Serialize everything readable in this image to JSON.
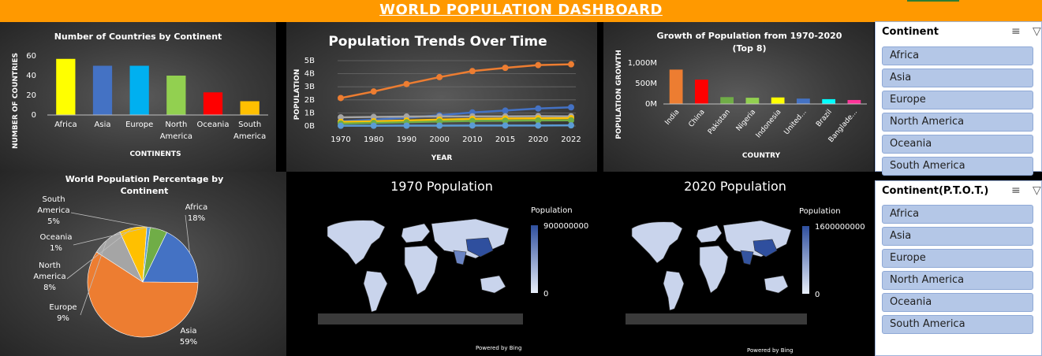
{
  "dashboard": {
    "title": "WORLD POPULATION DASHBOARD"
  },
  "colors": {
    "banner": "#ff9900",
    "slicer_item": "#b4c7e7",
    "map_fill_low": "#c9d4ec",
    "map_fill_high": "#2f4f9e"
  },
  "chart_data": [
    {
      "type": "bar",
      "title": "Number of Countries by Continent",
      "xlabel": "CONTINENTS",
      "ylabel": "NUMBER OF COUNTRIES",
      "categories": [
        "Africa",
        "Asia",
        "Europe",
        "North America",
        "Oceania",
        "South America"
      ],
      "category_lines": [
        [
          "Africa"
        ],
        [
          "Asia"
        ],
        [
          "Europe"
        ],
        [
          "North",
          "America"
        ],
        [
          "Oceania"
        ],
        [
          "South",
          "America"
        ]
      ],
      "values": [
        57,
        50,
        50,
        40,
        23,
        14
      ],
      "colors": [
        "#ffff00",
        "#4472c4",
        "#00b0f0",
        "#92d050",
        "#ff0000",
        "#ffc000"
      ],
      "yticks": [
        0,
        20,
        40,
        60
      ],
      "ylim": [
        0,
        60
      ],
      "grid": false
    },
    {
      "type": "line",
      "title": "Population Trends Over Time",
      "xlabel": "YEAR",
      "ylabel": "POPULATION",
      "x": [
        "1970",
        "1980",
        "1990",
        "2000",
        "2010",
        "2015",
        "2020",
        "2022"
      ],
      "ytick_labels": [
        "0B",
        "1B",
        "2B",
        "3B",
        "4B",
        "5B"
      ],
      "ylim": [
        0,
        5
      ],
      "series": [
        {
          "color": "#ed7d31",
          "values": [
            2.14,
            2.64,
            3.21,
            3.74,
            4.2,
            4.45,
            4.66,
            4.72
          ]
        },
        {
          "color": "#4472c4",
          "values": [
            0.37,
            0.48,
            0.63,
            0.82,
            1.04,
            1.18,
            1.34,
            1.43
          ]
        },
        {
          "color": "#a5a5a5",
          "values": [
            0.66,
            0.69,
            0.72,
            0.73,
            0.74,
            0.74,
            0.75,
            0.74
          ]
        },
        {
          "color": "#ffc000",
          "values": [
            0.32,
            0.36,
            0.42,
            0.49,
            0.54,
            0.57,
            0.59,
            0.6
          ]
        },
        {
          "color": "#70ad47",
          "values": [
            0.19,
            0.24,
            0.29,
            0.35,
            0.39,
            0.41,
            0.43,
            0.44
          ]
        },
        {
          "color": "#5b9bd5",
          "values": [
            0.02,
            0.02,
            0.03,
            0.03,
            0.04,
            0.04,
            0.04,
            0.05
          ]
        }
      ],
      "grid": true
    },
    {
      "type": "bar",
      "title": "Growth of Population from 1970-2020",
      "subtitle": "(Top 8)",
      "xlabel": "COUNTRY",
      "ylabel": "POPULATION GROWTH",
      "categories": [
        "India",
        "China",
        "Pakistan",
        "Nigeria",
        "Indonesia",
        "United...",
        "Brazil",
        "Banglade..."
      ],
      "values_millions": [
        839,
        593,
        167,
        152,
        159,
        131,
        117,
        97
      ],
      "colors": [
        "#ed7d31",
        "#ff0000",
        "#70ad47",
        "#92d050",
        "#ffff00",
        "#4472c4",
        "#00ffff",
        "#ff3399"
      ],
      "ytick_labels": [
        "0M",
        "500M",
        "1,000M"
      ],
      "ylim": [
        0,
        1000
      ],
      "grid": false
    },
    {
      "type": "pie",
      "title": "World Population Percentage by Continent",
      "slices": [
        {
          "label": "Africa",
          "pct": 18,
          "color": "#4472c4"
        },
        {
          "label": "Asia",
          "pct": 59,
          "color": "#ed7d31"
        },
        {
          "label": "Europe",
          "pct": 9,
          "color": "#a5a5a5"
        },
        {
          "label": "North America",
          "pct": 8,
          "color": "#ffc000"
        },
        {
          "label": "Oceania",
          "pct": 1,
          "color": "#5b9bd5"
        },
        {
          "label": "South America",
          "pct": 5,
          "color": "#70ad47"
        }
      ],
      "label_texts": [
        {
          "lines": [
            "Africa",
            "18%"
          ]
        },
        {
          "lines": [
            "Asia",
            "59%"
          ]
        },
        {
          "lines": [
            "Europe",
            "9%"
          ]
        },
        {
          "lines": [
            "North",
            "America",
            "8%"
          ]
        },
        {
          "lines": [
            "Oceania",
            "1%"
          ]
        },
        {
          "lines": [
            "South",
            "America",
            "5%"
          ]
        }
      ]
    }
  ],
  "maps": [
    {
      "title": "1970 Population",
      "legend_title": "Population",
      "legend_max": "900000000",
      "legend_min": "0",
      "credit": "Powered by Bing"
    },
    {
      "title": "2020 Population",
      "legend_title": "Population",
      "legend_max": "1600000000",
      "legend_min": "0",
      "credit": "Powered by Bing"
    }
  ],
  "slicers": [
    {
      "title": "Continent",
      "items": [
        "Africa",
        "Asia",
        "Europe",
        "North America",
        "Oceania",
        "South America"
      ]
    },
    {
      "title": "Continent(P.T.O.T.)",
      "items": [
        "Africa",
        "Asia",
        "Europe",
        "North America",
        "Oceania",
        "South America"
      ]
    }
  ]
}
